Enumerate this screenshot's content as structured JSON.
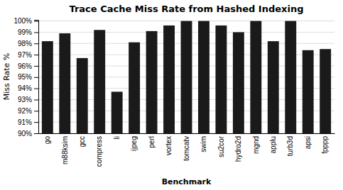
{
  "chart_data": {
    "type": "bar",
    "title": "Trace Cache Miss Rate from Hashed Indexing",
    "xlabel": "Benchmark",
    "ylabel": "Miss Rate %",
    "categories": [
      "go",
      "m88ksim",
      "gcc",
      "compress",
      "li",
      "ijpeg",
      "perl",
      "vortex",
      "tomcatv",
      "swim",
      "su2cor",
      "hydro2d",
      "mgnd",
      "applu",
      "turb3d",
      "apsi",
      "fpppp"
    ],
    "values": [
      98.2,
      98.9,
      96.7,
      99.2,
      93.7,
      98.1,
      99.1,
      99.6,
      100.0,
      100.0,
      99.6,
      99.0,
      100.0,
      98.2,
      100.0,
      97.4,
      97.5
    ],
    "color": "#1a1a1a",
    "ylim": [
      90,
      100.1
    ],
    "yticks": [
      {
        "value": 90,
        "label": "90%"
      },
      {
        "value": 91,
        "label": "91%"
      },
      {
        "value": 92,
        "label": "92%"
      },
      {
        "value": 93,
        "label": "93%"
      },
      {
        "value": 94,
        "label": "94%"
      },
      {
        "value": 95,
        "label": "95%"
      },
      {
        "value": 96,
        "label": "96%"
      },
      {
        "value": 97,
        "label": "97%"
      },
      {
        "value": 98,
        "label": "98%"
      },
      {
        "value": 99,
        "label": "99%"
      },
      {
        "value": 100,
        "label": "100%"
      }
    ],
    "grid": true
  }
}
